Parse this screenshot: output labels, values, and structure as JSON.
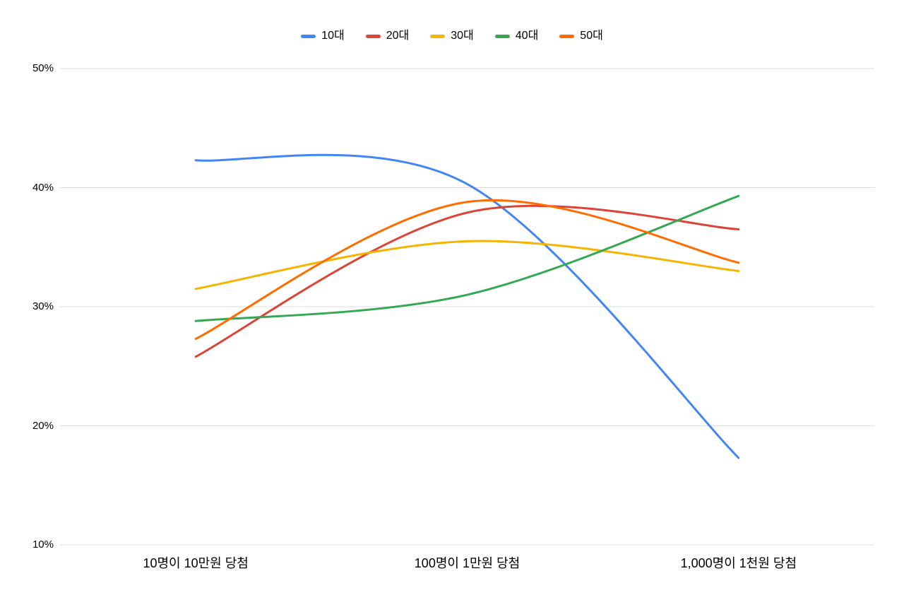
{
  "legend": {
    "items": [
      {
        "label": "10대",
        "color": "#4285F4"
      },
      {
        "label": "20대",
        "color": "#DB4437"
      },
      {
        "label": "30대",
        "color": "#F5B400"
      },
      {
        "label": "40대",
        "color": "#34A853"
      },
      {
        "label": "50대",
        "color": "#FF6D01"
      }
    ]
  },
  "chart_data": {
    "type": "line",
    "smooth": true,
    "title": "",
    "xlabel": "",
    "ylabel": "",
    "categories": [
      "10명이 10만원 당첨",
      "100명이 1만원 당첨",
      "1,000명이 1천원 당첨"
    ],
    "series": [
      {
        "name": "10대",
        "color": "#4285F4",
        "values": [
          42.3,
          40.3,
          17.3
        ]
      },
      {
        "name": "20대",
        "color": "#DB4437",
        "values": [
          25.8,
          37.9,
          36.5
        ]
      },
      {
        "name": "30대",
        "color": "#F5B400",
        "values": [
          31.5,
          35.5,
          33.0
        ]
      },
      {
        "name": "40대",
        "color": "#34A853",
        "values": [
          28.8,
          31.0,
          39.3
        ]
      },
      {
        "name": "50대",
        "color": "#FF6D01",
        "values": [
          27.3,
          38.8,
          33.7
        ]
      }
    ],
    "yticks": [
      "10%",
      "20%",
      "30%",
      "40%",
      "50%"
    ],
    "ytick_values": [
      10,
      20,
      30,
      40,
      50
    ],
    "ylim": [
      10,
      50
    ],
    "grid": true,
    "legend_position": "top"
  },
  "colors": {
    "background": "#FFFFFF",
    "gridline": "#DADCE0",
    "text": "#000000"
  }
}
